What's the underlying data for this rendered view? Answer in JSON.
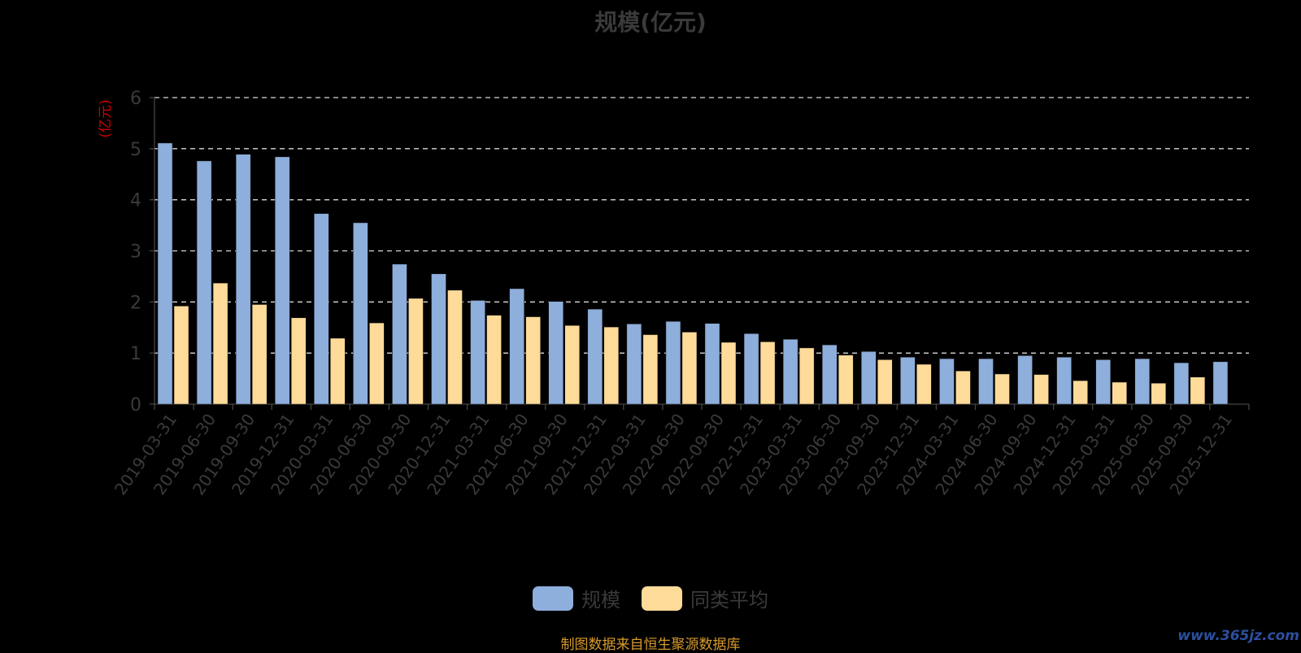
{
  "chart_data": {
    "type": "bar",
    "title": "规模(亿元)",
    "ylabel": "(亿元)",
    "ylim": [
      0,
      6
    ],
    "yticks": [
      0,
      1,
      2,
      3,
      4,
      5,
      6
    ],
    "grid": true,
    "legend_position": "bottom-center",
    "categories": [
      "2019-03-31",
      "2019-06-30",
      "2019-09-30",
      "2019-12-31",
      "2020-03-31",
      "2020-06-30",
      "2020-09-30",
      "2020-12-31",
      "2021-03-31",
      "2021-06-30",
      "2021-09-30",
      "2021-12-31",
      "2022-03-31",
      "2022-06-30",
      "2022-09-30",
      "2022-12-31",
      "2023-03-31",
      "2023-06-30",
      "2023-09-30",
      "2023-12-31",
      "2024-03-31",
      "2024-06-30",
      "2024-09-30",
      "2024-12-31",
      "2025-03-31",
      "2025-06-30",
      "2025-09-30",
      "2025-12-31"
    ],
    "series": [
      {
        "name": "规模",
        "color": "#8eaedc",
        "values": [
          5.11,
          4.76,
          4.89,
          4.84,
          3.73,
          3.55,
          2.74,
          2.55,
          2.03,
          2.26,
          2.01,
          1.86,
          1.57,
          1.62,
          1.58,
          1.38,
          1.27,
          1.16,
          1.03,
          0.92,
          0.89,
          0.89,
          0.95,
          0.92,
          0.87,
          0.89,
          0.81,
          0.83
        ]
      },
      {
        "name": "同类平均",
        "color": "#ffdb99",
        "values": [
          1.92,
          2.37,
          1.95,
          1.69,
          1.29,
          1.59,
          2.07,
          2.23,
          1.74,
          1.71,
          1.54,
          1.51,
          1.36,
          1.41,
          1.21,
          1.22,
          1.1,
          0.96,
          0.87,
          0.78,
          0.65,
          0.59,
          0.58,
          0.46,
          0.43,
          0.41,
          0.53,
          null
        ]
      }
    ]
  },
  "footer": {
    "source_text": "制图数据来自恒生聚源数据库",
    "watermark": "www.365jz.com"
  }
}
